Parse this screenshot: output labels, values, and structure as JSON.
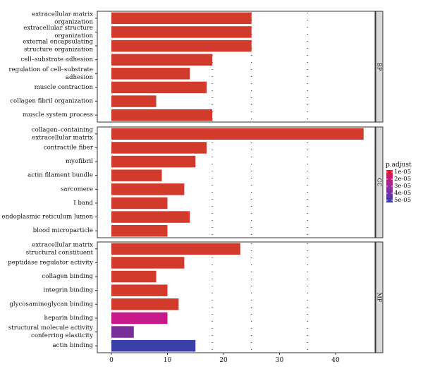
{
  "chart_data": {
    "type": "bar",
    "orientation": "horizontal",
    "grid": false,
    "xlim": [
      -1.5,
      47
    ],
    "x_ticks": [
      "0",
      "10",
      "20",
      "30",
      "40"
    ],
    "legend_placement": "right",
    "legend": {
      "title": "p.adjust",
      "ticks": [
        "1e-05",
        "2e-05",
        "3e-05",
        "4e-05",
        "5e-05"
      ],
      "colors": [
        "#e41a1c",
        "#c21a7a",
        "#982b9b",
        "#6a35a5",
        "#3b3fa8"
      ]
    },
    "panels": [
      {
        "name": "BP",
        "bars": [
          {
            "label": [
              "extracellular matrix",
              "organization"
            ],
            "value": 25,
            "color": "#d23a2c"
          },
          {
            "label": [
              "extracellular structure",
              "organization"
            ],
            "value": 25,
            "color": "#d23a2c"
          },
          {
            "label": [
              "external encapsulating",
              "structure organization"
            ],
            "value": 25,
            "color": "#d23a2c"
          },
          {
            "label": [
              "cell–substrate adhesion"
            ],
            "value": 18,
            "color": "#d23a2c"
          },
          {
            "label": [
              "regulation of cell–substrate",
              "adhesion"
            ],
            "value": 14,
            "color": "#d23a2c"
          },
          {
            "label": [
              "muscle contraction"
            ],
            "value": 17,
            "color": "#d23a2c"
          },
          {
            "label": [
              "collagen fibril organization"
            ],
            "value": 8,
            "color": "#d23a2c"
          },
          {
            "label": [
              "muscle system process"
            ],
            "value": 18,
            "color": "#d23a2c"
          }
        ]
      },
      {
        "name": "CC",
        "bars": [
          {
            "label": [
              "collagen–containing",
              "extracellular matrix"
            ],
            "value": 45,
            "color": "#d23a2c"
          },
          {
            "label": [
              "contractile fiber"
            ],
            "value": 17,
            "color": "#d23a2c"
          },
          {
            "label": [
              "myofibril"
            ],
            "value": 15,
            "color": "#d23a2c"
          },
          {
            "label": [
              "actin filament bundle"
            ],
            "value": 9,
            "color": "#d23a2c"
          },
          {
            "label": [
              "sarcomere"
            ],
            "value": 13,
            "color": "#d23a2c"
          },
          {
            "label": [
              "I band"
            ],
            "value": 10,
            "color": "#d23a2c"
          },
          {
            "label": [
              "endoplasmic reticulum lumen"
            ],
            "value": 14,
            "color": "#d23a2c"
          },
          {
            "label": [
              "blood microparticle"
            ],
            "value": 10,
            "color": "#d23a2c"
          }
        ]
      },
      {
        "name": "MF",
        "bars": [
          {
            "label": [
              "extracellular matrix",
              "structural constituent"
            ],
            "value": 23,
            "color": "#d23a2c"
          },
          {
            "label": [
              "peptidase regulator activity"
            ],
            "value": 13,
            "color": "#d23a2c"
          },
          {
            "label": [
              "collagen binding"
            ],
            "value": 8,
            "color": "#d23a2c"
          },
          {
            "label": [
              "integrin binding"
            ],
            "value": 10,
            "color": "#d23a2c"
          },
          {
            "label": [
              "glycosaminoglycan binding"
            ],
            "value": 12,
            "color": "#d23a2c"
          },
          {
            "label": [
              "heparin binding"
            ],
            "value": 10,
            "color": "#c8198a"
          },
          {
            "label": [
              "structural molecule activity",
              "conferring elasticity"
            ],
            "value": 4,
            "color": "#7a2e9a"
          },
          {
            "label": [
              "actin binding"
            ],
            "value": 15,
            "color": "#3b3fa8"
          }
        ]
      }
    ]
  }
}
